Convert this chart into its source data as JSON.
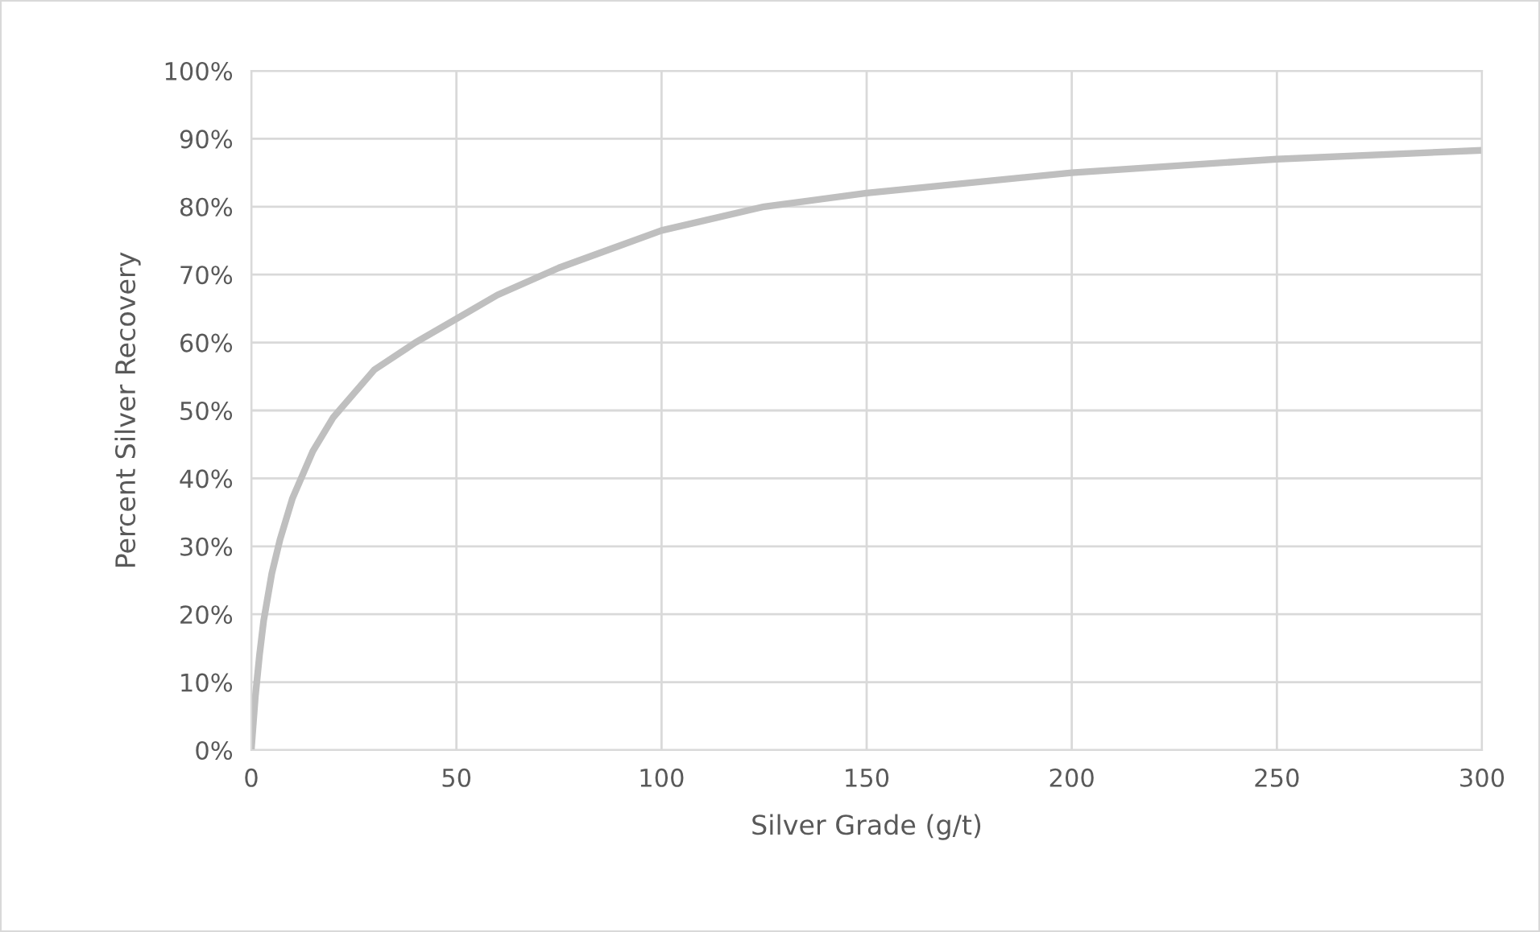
{
  "chart_data": {
    "type": "line",
    "xlabel": "Silver Grade (g/t)",
    "ylabel": "Percent Silver Recovery",
    "x": [
      0,
      1,
      2,
      3,
      5,
      7,
      10,
      15,
      20,
      30,
      40,
      50,
      60,
      75,
      100,
      125,
      150,
      200,
      250,
      300
    ],
    "series": [
      {
        "color": "#bfbfbf",
        "values": [
          0,
          8,
          14,
          19,
          26,
          31,
          37,
          44,
          49,
          56,
          60,
          63.5,
          67,
          71,
          76.5,
          80,
          82,
          85,
          87,
          88.3
        ]
      }
    ],
    "xlim": [
      0,
      300
    ],
    "xticks": [
      0,
      50,
      100,
      150,
      200,
      250,
      300
    ],
    "ylim": [
      0,
      100
    ],
    "yticks": [
      {
        "value": 0,
        "label": "0%"
      },
      {
        "value": 10,
        "label": "10%"
      },
      {
        "value": 20,
        "label": "20%"
      },
      {
        "value": 30,
        "label": "30%"
      },
      {
        "value": 40,
        "label": "40%"
      },
      {
        "value": 50,
        "label": "50%"
      },
      {
        "value": 60,
        "label": "60%"
      },
      {
        "value": 70,
        "label": "70%"
      },
      {
        "value": 80,
        "label": "80%"
      },
      {
        "value": 90,
        "label": "90%"
      },
      {
        "value": 100,
        "label": "100%"
      }
    ],
    "grid": true,
    "marker": "none",
    "line_style": "solid"
  }
}
